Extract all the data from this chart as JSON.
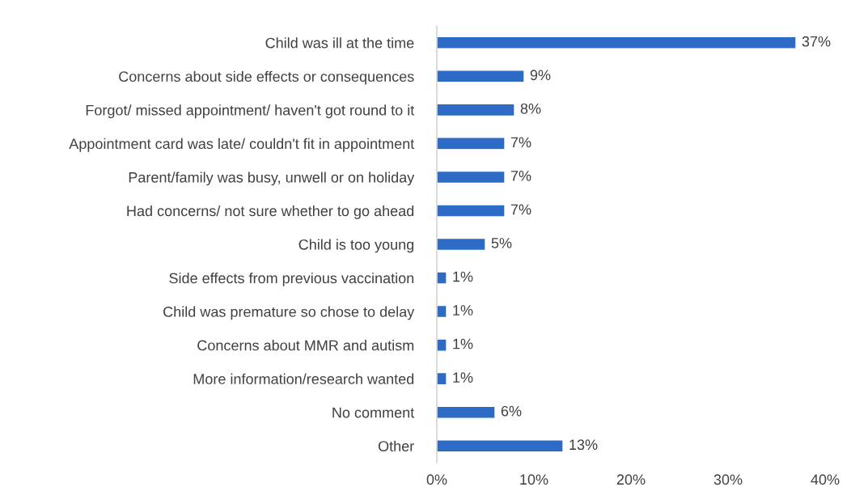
{
  "chart_data": {
    "type": "bar",
    "orientation": "horizontal",
    "categories": [
      "Child was ill at the time",
      "Concerns about side effects or consequences",
      "Forgot/ missed appointment/ haven't got round to it",
      "Appointment card was late/ couldn't fit in appointment",
      "Parent/family was busy, unwell or on holiday",
      "Had concerns/ not sure whether to go ahead",
      "Child is too young",
      "Side effects from previous vaccination",
      "Child was premature so chose to delay",
      "Concerns about MMR and autism",
      "More information/research wanted",
      "No comment",
      "Other"
    ],
    "values": [
      37,
      9,
      8,
      7,
      7,
      7,
      5,
      1,
      1,
      1,
      1,
      6,
      13
    ],
    "value_labels": [
      "37%",
      "9%",
      "8%",
      "7%",
      "7%",
      "7%",
      "5%",
      "1%",
      "1%",
      "1%",
      "1%",
      "6%",
      "13%"
    ],
    "color": "#2e6bc6",
    "xlim": [
      0,
      40
    ],
    "xticks": [
      {
        "value": 0,
        "label": "0%"
      },
      {
        "value": 10,
        "label": "10%"
      },
      {
        "value": 20,
        "label": "20%"
      },
      {
        "value": 30,
        "label": "30%"
      },
      {
        "value": 40,
        "label": "40%"
      }
    ],
    "grid": false,
    "legend": false
  }
}
